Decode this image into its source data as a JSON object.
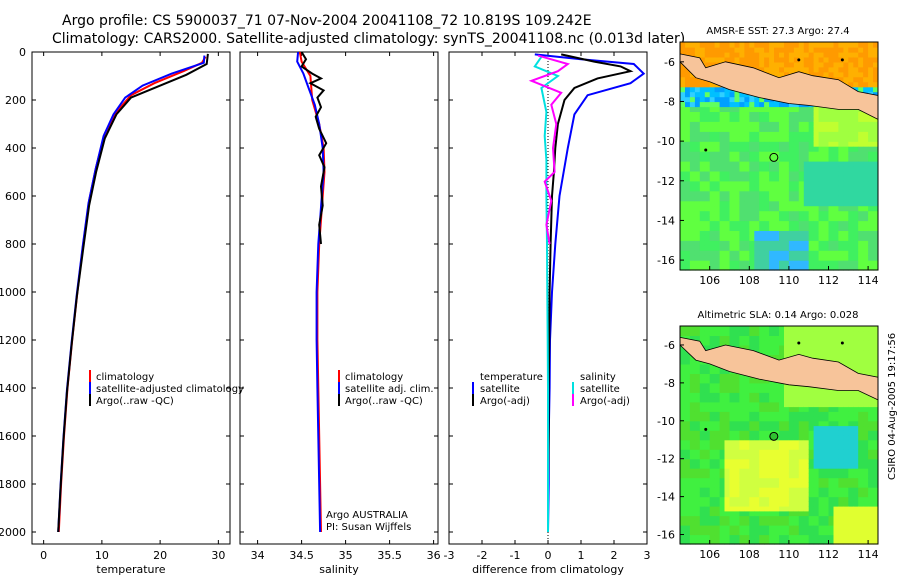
{
  "header": {
    "line1": "Argo profile: CS 5900037_71 07-Nov-2004 20041108_72 10.819S 109.242E",
    "line2": "Climatology: CARS2000. Satellite-adjusted climatology: synTS_20041108.nc (0.013d later)"
  },
  "footer": {
    "side_label": "CSIRO 04-Aug-2005 19:17:56"
  },
  "colors": {
    "climatology": "#ff0000",
    "satellite": "#0000ff",
    "argo": "#000000",
    "salinity": "#00e0e0",
    "argo_salinity": "#ff00ff",
    "land": "#f7c49a"
  },
  "chart_data": [
    {
      "type": "line",
      "title": "",
      "xlabel": "temperature",
      "ylabel": "",
      "xlim": [
        -2,
        32
      ],
      "ylim": [
        2050,
        0
      ],
      "xticks": [
        0,
        10,
        20,
        30
      ],
      "yticks": [
        0,
        200,
        400,
        600,
        800,
        1000,
        1200,
        1400,
        1600,
        1800,
        2000
      ],
      "legend": {
        "position": "middle-right",
        "entries": [
          "climatology",
          "satellite-adjusted climatology",
          "Argo(..raw -QC)"
        ]
      },
      "series": [
        {
          "name": "climatology",
          "color": "#ff0000",
          "points": [
            [
              27.8,
              20
            ],
            [
              27.2,
              45
            ],
            [
              24,
              80
            ],
            [
              19,
              130
            ],
            [
              15,
              180
            ],
            [
              12.5,
              250
            ],
            [
              10.5,
              340
            ],
            [
              9,
              480
            ],
            [
              7.8,
              620
            ],
            [
              6.8,
              800
            ],
            [
              5.8,
              1000
            ],
            [
              4.9,
              1200
            ],
            [
              4.1,
              1400
            ],
            [
              3.5,
              1600
            ],
            [
              3.0,
              1800
            ],
            [
              2.6,
              2000
            ]
          ]
        },
        {
          "name": "satellite-adjusted climatology",
          "color": "#0000ff",
          "points": [
            [
              27.6,
              15
            ],
            [
              27.5,
              45
            ],
            [
              22,
              90
            ],
            [
              17,
              140
            ],
            [
              14,
              190
            ],
            [
              12,
              260
            ],
            [
              10.3,
              350
            ],
            [
              8.9,
              490
            ],
            [
              7.7,
              630
            ],
            [
              6.7,
              810
            ],
            [
              5.7,
              1010
            ],
            [
              4.8,
              1210
            ],
            [
              4.0,
              1410
            ],
            [
              3.4,
              1610
            ],
            [
              2.9,
              1810
            ],
            [
              2.5,
              2000
            ]
          ]
        },
        {
          "name": "Argo(..raw -QC)",
          "color": "#000000",
          "points": [
            [
              28.2,
              8
            ],
            [
              28,
              50
            ],
            [
              24.5,
              95
            ],
            [
              19.5,
              145
            ],
            [
              15,
              190
            ],
            [
              12.5,
              260
            ],
            [
              10.5,
              360
            ],
            [
              9,
              500
            ],
            [
              7.8,
              640
            ],
            [
              6.8,
              820
            ],
            [
              5.7,
              1020
            ],
            [
              4.8,
              1220
            ],
            [
              4.0,
              1420
            ],
            [
              3.4,
              1620
            ],
            [
              2.9,
              1820
            ],
            [
              2.5,
              2000
            ]
          ]
        }
      ]
    },
    {
      "type": "line",
      "title": "",
      "xlabel": "salinity",
      "ylabel": "",
      "xlim": [
        33.8,
        36.05
      ],
      "ylim": [
        2050,
        0
      ],
      "xticks": [
        34,
        34.5,
        35,
        35.5,
        36
      ],
      "yticks": [
        0,
        200,
        400,
        600,
        800,
        1000,
        1200,
        1400,
        1600,
        1800,
        2000
      ],
      "legend": {
        "position": "middle-right",
        "entries": [
          "climatology",
          "satellite adj. clim.",
          "Argo(..raw -QC)"
        ]
      },
      "annotation": [
        "Argo AUSTRALIA",
        "PI: Susan Wijffels"
      ],
      "series": [
        {
          "name": "climatology",
          "color": "#ff0000",
          "points": [
            [
              34.48,
              0
            ],
            [
              34.5,
              40
            ],
            [
              34.6,
              100
            ],
            [
              34.62,
              200
            ],
            [
              34.7,
              300
            ],
            [
              34.75,
              400
            ],
            [
              34.76,
              500
            ],
            [
              34.74,
              600
            ],
            [
              34.72,
              700
            ],
            [
              34.7,
              800
            ],
            [
              34.68,
              1000
            ],
            [
              34.68,
              1200
            ],
            [
              34.69,
              1400
            ],
            [
              34.7,
              1600
            ],
            [
              34.71,
              1800
            ],
            [
              34.72,
              2000
            ]
          ]
        },
        {
          "name": "satellite adj. clim.",
          "color": "#0000ff",
          "points": [
            [
              34.46,
              0
            ],
            [
              34.45,
              40
            ],
            [
              34.52,
              90
            ],
            [
              34.58,
              150
            ],
            [
              34.65,
              220
            ],
            [
              34.7,
              300
            ],
            [
              34.74,
              400
            ],
            [
              34.75,
              500
            ],
            [
              34.73,
              600
            ],
            [
              34.71,
              700
            ],
            [
              34.69,
              800
            ],
            [
              34.67,
              1000
            ],
            [
              34.67,
              1200
            ],
            [
              34.68,
              1400
            ],
            [
              34.69,
              1600
            ],
            [
              34.7,
              1800
            ],
            [
              34.71,
              2000
            ]
          ]
        },
        {
          "name": "Argo(..raw -QC)",
          "color": "#000000",
          "points": [
            [
              34.5,
              0
            ],
            [
              34.55,
              30
            ],
            [
              34.5,
              60
            ],
            [
              34.62,
              90
            ],
            [
              34.72,
              110
            ],
            [
              34.6,
              130
            ],
            [
              34.75,
              160
            ],
            [
              34.68,
              190
            ],
            [
              34.72,
              230
            ],
            [
              34.66,
              270
            ],
            [
              34.7,
              320
            ],
            [
              34.78,
              380
            ],
            [
              34.7,
              430
            ],
            [
              34.76,
              480
            ],
            [
              34.72,
              560
            ],
            [
              34.74,
              640
            ],
            [
              34.7,
              720
            ],
            [
              34.72,
              800
            ]
          ]
        }
      ]
    },
    {
      "type": "line",
      "title": "",
      "xlabel": "difference from climatology",
      "ylabel": "",
      "xlim": [
        -3,
        3
      ],
      "ylim": [
        2050,
        0
      ],
      "xticks": [
        -3,
        -2,
        -1,
        0,
        1,
        2,
        3
      ],
      "yticks": [
        0,
        200,
        400,
        600,
        800,
        1000,
        1200,
        1400,
        1600,
        1800,
        2000
      ],
      "legend": {
        "position": "middle",
        "entries": [
          "temperature",
          "satellite",
          "Argo(-adj)",
          "salinity",
          "satellite",
          "Argo(-adj)"
        ]
      },
      "series": [
        {
          "name": "temperature satellite",
          "color": "#0000ff",
          "points": [
            [
              -0.4,
              10
            ],
            [
              1.0,
              30
            ],
            [
              2.6,
              50
            ],
            [
              2.9,
              90
            ],
            [
              2.5,
              130
            ],
            [
              1.2,
              180
            ],
            [
              0.8,
              260
            ],
            [
              0.6,
              400
            ],
            [
              0.35,
              600
            ],
            [
              0.22,
              800
            ],
            [
              0.12,
              1000
            ],
            [
              0.06,
              1200
            ],
            [
              0.05,
              1400
            ],
            [
              0.02,
              1600
            ],
            [
              0.02,
              1800
            ],
            [
              0,
              2000
            ]
          ]
        },
        {
          "name": "temperature Argo(-adj)",
          "color": "#000000",
          "points": [
            [
              0.4,
              10
            ],
            [
              1.4,
              40
            ],
            [
              2.2,
              60
            ],
            [
              2.5,
              80
            ],
            [
              1.5,
              110
            ],
            [
              0.8,
              150
            ],
            [
              0.5,
              200
            ],
            [
              0.3,
              300
            ],
            [
              0.22,
              400
            ],
            [
              0.18,
              500
            ],
            [
              0.12,
              600
            ],
            [
              0.08,
              800
            ],
            [
              0.05,
              1000
            ],
            [
              0.04,
              1200
            ],
            [
              0.02,
              1400
            ],
            [
              0.02,
              1600
            ],
            [
              0,
              1800
            ]
          ]
        },
        {
          "name": "salinity satellite",
          "color": "#00e0e0",
          "points": [
            [
              -0.2,
              20
            ],
            [
              -0.4,
              60
            ],
            [
              0.3,
              100
            ],
            [
              -0.2,
              150
            ],
            [
              -0.05,
              250
            ],
            [
              -0.1,
              350
            ],
            [
              -0.05,
              450
            ],
            [
              -0.05,
              600
            ],
            [
              -0.03,
              800
            ],
            [
              -0.02,
              1000
            ],
            [
              -0.01,
              1200
            ],
            [
              0,
              1400
            ],
            [
              0,
              1600
            ],
            [
              0,
              1800
            ],
            [
              0,
              2000
            ]
          ]
        },
        {
          "name": "salinity Argo(-adj)",
          "color": "#ff00ff",
          "points": [
            [
              -0.3,
              15
            ],
            [
              0.6,
              50
            ],
            [
              0.3,
              80
            ],
            [
              -0.5,
              120
            ],
            [
              0.4,
              170
            ],
            [
              0.1,
              220
            ],
            [
              0.25,
              300
            ],
            [
              0.15,
              400
            ],
            [
              0.2,
              500
            ],
            [
              -0.1,
              540
            ],
            [
              0.1,
              620
            ],
            [
              -0.05,
              720
            ],
            [
              0.05,
              800
            ]
          ]
        }
      ]
    },
    {
      "type": "heatmap",
      "title": "AMSR-E SST: 27.3 Argo: 27.4",
      "xlabel": "",
      "ylabel": "",
      "xlim": [
        104.5,
        114.5
      ],
      "ylim": [
        -16.5,
        -5
      ],
      "xticks": [
        106,
        108,
        110,
        112,
        114
      ],
      "yticks": [
        -6,
        -8,
        -10,
        -12,
        -14,
        -16
      ],
      "markers": [
        [
          109.24,
          -10.82
        ]
      ]
    },
    {
      "type": "heatmap",
      "title": "Altimetric SLA: 0.14 Argo: 0.028",
      "xlabel": "",
      "ylabel": "",
      "xlim": [
        104.5,
        114.5
      ],
      "ylim": [
        -16.5,
        -5
      ],
      "xticks": [
        106,
        108,
        110,
        112,
        114
      ],
      "yticks": [
        -6,
        -8,
        -10,
        -12,
        -14,
        -16
      ],
      "markers": [
        [
          109.24,
          -10.82
        ]
      ]
    }
  ]
}
